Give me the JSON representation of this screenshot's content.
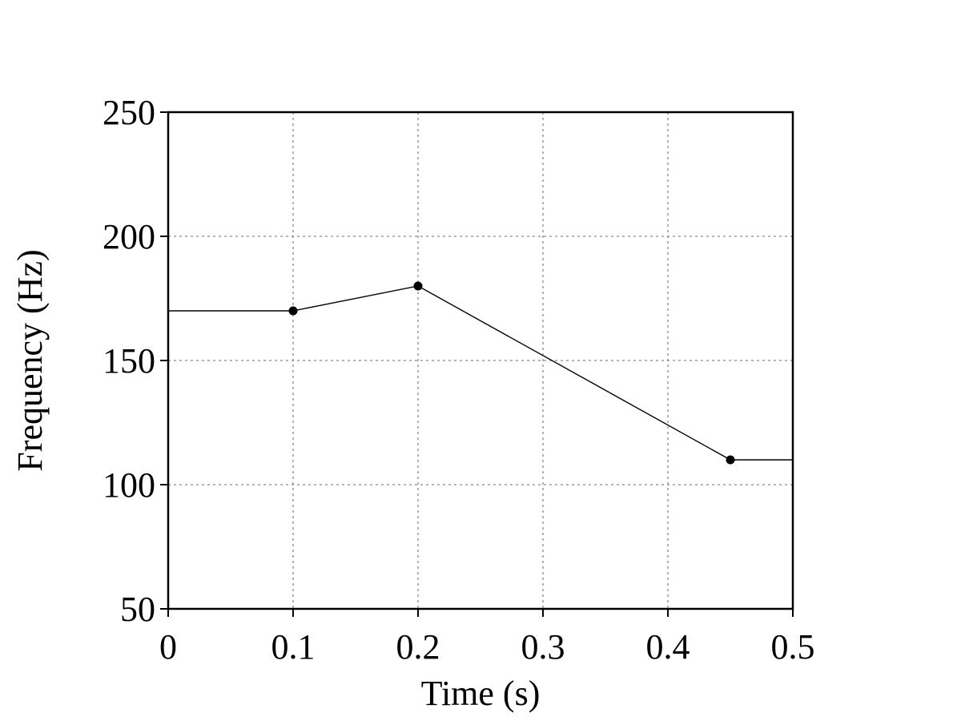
{
  "chart_data": {
    "type": "line",
    "title": "",
    "xlabel": "Time (s)",
    "ylabel": "Frequency (Hz)",
    "xlim": [
      0,
      0.5
    ],
    "ylim": [
      50,
      250
    ],
    "x_ticks": [
      0,
      0.1,
      0.2,
      0.3,
      0.4,
      0.5
    ],
    "x_tick_labels": [
      "0",
      "0.1",
      "0.2",
      "0.3",
      "0.4",
      "0.5"
    ],
    "y_ticks": [
      50,
      100,
      150,
      200,
      250
    ],
    "y_tick_labels": [
      "50",
      "100",
      "150",
      "200",
      "250"
    ],
    "grid": true,
    "legend": "none",
    "series": [
      {
        "line_x": [
          0,
          0.1,
          0.2,
          0.45,
          0.5
        ],
        "line_y": [
          170,
          170,
          180,
          110,
          110
        ],
        "marker_x": [
          0.1,
          0.2,
          0.45
        ],
        "marker_y": [
          170,
          180,
          110
        ],
        "color": "#000000"
      }
    ]
  }
}
